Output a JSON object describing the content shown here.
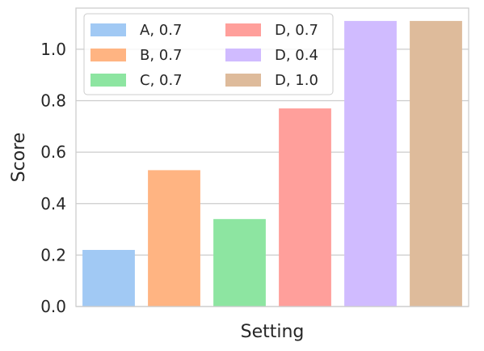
{
  "chart_data": {
    "type": "bar",
    "xlabel": "Setting",
    "ylabel": "Score",
    "ylim": [
      0,
      1.16
    ],
    "yticks": [
      "0.0",
      "0.2",
      "0.4",
      "0.6",
      "0.8",
      "1.0"
    ],
    "grid": true,
    "legend_placement": "top-left",
    "legend_columns": 2,
    "series": [
      {
        "name": "A, 0.7",
        "value": 0.22,
        "color": "#a1c9f4"
      },
      {
        "name": "B, 0.7",
        "value": 0.53,
        "color": "#ffb482"
      },
      {
        "name": "C, 0.7",
        "value": 0.34,
        "color": "#8de5a1"
      },
      {
        "name": "D, 0.7",
        "value": 0.77,
        "color": "#ff9f9b"
      },
      {
        "name": "D, 0.4",
        "value": 1.11,
        "color": "#d0bbff"
      },
      {
        "name": "D, 1.0",
        "value": 1.11,
        "color": "#debb9b"
      }
    ]
  }
}
